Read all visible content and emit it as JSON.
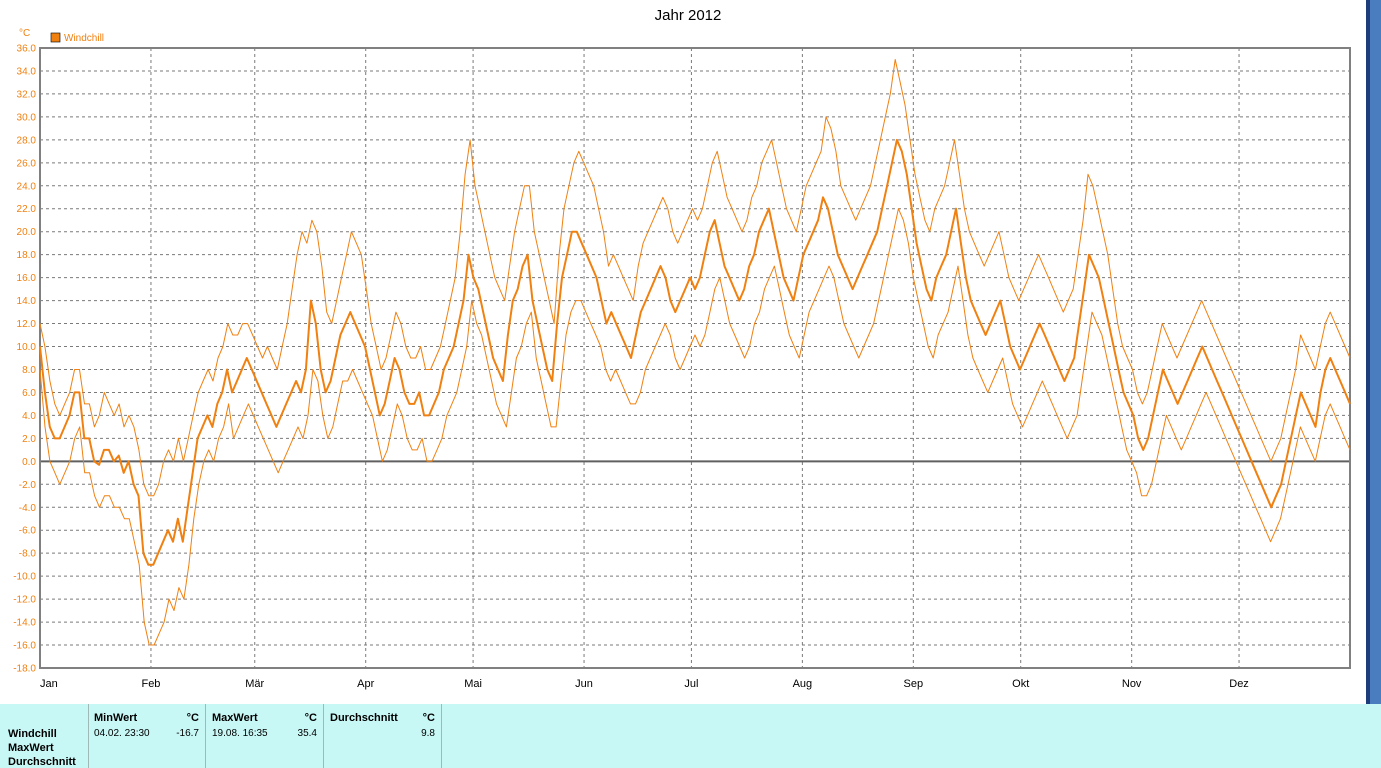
{
  "chart_data": {
    "type": "line",
    "title": "Jahr 2012",
    "unit": "°C",
    "legend": [
      {
        "name": "Windchill",
        "color": "#f08010"
      }
    ],
    "legend_position": "top-left",
    "ylim": [
      -18,
      36
    ],
    "yticks": [
      "36.0",
      "34.0",
      "32.0",
      "30.0",
      "28.0",
      "26.0",
      "24.0",
      "22.0",
      "20.0",
      "18.0",
      "16.0",
      "14.0",
      "12.0",
      "10.0",
      "8.0",
      "6.0",
      "4.0",
      "2.0",
      "0.0",
      "-2.0",
      "-4.0",
      "-6.0",
      "-8.0",
      "-10.0",
      "-12.0",
      "-14.0",
      "-16.0",
      "-18.0"
    ],
    "xticks": [
      "Jan",
      "Feb",
      "Mär",
      "Apr",
      "Mai",
      "Jun",
      "Jul",
      "Aug",
      "Sep",
      "Okt",
      "Nov",
      "Dez"
    ],
    "grid": true,
    "series": [
      {
        "name": "Windchill",
        "role": "avg",
        "width": 2,
        "values": [
          10,
          6,
          3,
          2,
          2,
          3,
          4,
          6,
          6,
          2,
          2,
          0,
          -0.3,
          1,
          1,
          0,
          0.5,
          -1,
          0,
          -2,
          -3,
          -8,
          -9,
          -9,
          -8,
          -7,
          -6,
          -7,
          -5,
          -7,
          -4,
          -1,
          2,
          3,
          4,
          3,
          5,
          6,
          8,
          6,
          7,
          8,
          9,
          8,
          7,
          6,
          5,
          4,
          3,
          4,
          5,
          6,
          7,
          6,
          8,
          14,
          12,
          8,
          6,
          7,
          9,
          11,
          12,
          13,
          12,
          11,
          10,
          8,
          6,
          4,
          5,
          7,
          9,
          8,
          6,
          5,
          5,
          6,
          4,
          4,
          5,
          6,
          8,
          9,
          10,
          12,
          14,
          18,
          16,
          15,
          13,
          11,
          9,
          8,
          7,
          11,
          14,
          15,
          17,
          18,
          14,
          12,
          10,
          8,
          7,
          12,
          16,
          18,
          20,
          20,
          19,
          18,
          17,
          16,
          14,
          12,
          13,
          12,
          11,
          10,
          9,
          11,
          13,
          14,
          15,
          16,
          17,
          16,
          14,
          13,
          14,
          15,
          16,
          15,
          16,
          18,
          20,
          21,
          19,
          17,
          16,
          15,
          14,
          15,
          17,
          18,
          20,
          21,
          22,
          20,
          18,
          16,
          15,
          14,
          16,
          18,
          19,
          20,
          21,
          23,
          22,
          20,
          18,
          17,
          16,
          15,
          16,
          17,
          18,
          19,
          20,
          22,
          24,
          26,
          28,
          27,
          25,
          22,
          19,
          17,
          15,
          14,
          16,
          17,
          18,
          20,
          22,
          19,
          16,
          14,
          13,
          12,
          11,
          12,
          13,
          14,
          12,
          10,
          9,
          8,
          9,
          10,
          11,
          12,
          11,
          10,
          9,
          8,
          7,
          8,
          9,
          12,
          15,
          18,
          17,
          16,
          14,
          12,
          10,
          8,
          6,
          5,
          4,
          2,
          1,
          2,
          4,
          6,
          8,
          7,
          6,
          5,
          6,
          7,
          8,
          9,
          10,
          9,
          8,
          7,
          6,
          5,
          4,
          3,
          2,
          1,
          0,
          -1,
          -2,
          -3,
          -4,
          -3,
          -2,
          0,
          2,
          4,
          6,
          5,
          4,
          3,
          6,
          8,
          9,
          8,
          7,
          6,
          5
        ]
      },
      {
        "name": "MaxWert",
        "role": "max",
        "width": 1,
        "values": [
          12,
          10,
          7,
          5,
          4,
          5,
          6,
          8,
          8,
          5,
          5,
          3,
          4,
          6,
          5,
          4,
          5,
          3,
          4,
          3,
          1,
          -2,
          -3,
          -3,
          -2,
          0,
          1,
          0,
          2,
          0,
          2,
          4,
          6,
          7,
          8,
          7,
          9,
          10,
          12,
          11,
          11,
          12,
          12,
          11,
          10,
          9,
          10,
          9,
          8,
          10,
          12,
          15,
          18,
          20,
          19,
          21,
          20,
          17,
          13,
          12,
          14,
          16,
          18,
          20,
          19,
          18,
          15,
          12,
          10,
          8,
          9,
          11,
          13,
          12,
          10,
          9,
          9,
          10,
          8,
          8,
          9,
          10,
          12,
          14,
          16,
          20,
          25,
          28,
          24,
          22,
          20,
          18,
          16,
          15,
          14,
          17,
          20,
          22,
          24,
          24,
          20,
          18,
          16,
          14,
          12,
          18,
          22,
          24,
          26,
          27,
          26,
          25,
          24,
          22,
          20,
          17,
          18,
          17,
          16,
          15,
          14,
          17,
          19,
          20,
          21,
          22,
          23,
          22,
          20,
          19,
          20,
          21,
          22,
          21,
          22,
          24,
          26,
          27,
          25,
          23,
          22,
          21,
          20,
          21,
          23,
          24,
          26,
          27,
          28,
          26,
          24,
          22,
          21,
          20,
          22,
          24,
          25,
          26,
          27,
          30,
          29,
          27,
          24,
          23,
          22,
          21,
          22,
          23,
          24,
          26,
          28,
          30,
          32,
          35,
          33,
          31,
          28,
          25,
          23,
          21,
          20,
          22,
          23,
          24,
          26,
          28,
          25,
          22,
          20,
          19,
          18,
          17,
          18,
          19,
          20,
          18,
          16,
          15,
          14,
          15,
          16,
          17,
          18,
          17,
          16,
          15,
          14,
          13,
          14,
          15,
          18,
          21,
          25,
          24,
          22,
          20,
          18,
          15,
          12,
          10,
          9,
          8,
          6,
          5,
          6,
          8,
          10,
          12,
          11,
          10,
          9,
          10,
          11,
          12,
          13,
          14,
          13,
          12,
          11,
          10,
          9,
          8,
          7,
          6,
          5,
          4,
          3,
          2,
          1,
          0,
          1,
          2,
          4,
          6,
          8,
          11,
          10,
          9,
          8,
          10,
          12,
          13,
          12,
          11,
          10,
          9
        ]
      },
      {
        "name": "MinWert",
        "role": "min",
        "width": 1,
        "values": [
          8,
          3,
          0,
          -1,
          -2,
          -1,
          0,
          2,
          3,
          -1,
          -1,
          -3,
          -4,
          -3,
          -3,
          -4,
          -4,
          -5,
          -5,
          -7,
          -9,
          -14,
          -16,
          -16,
          -15,
          -14,
          -12,
          -13,
          -11,
          -12,
          -9,
          -5,
          -2,
          0,
          1,
          0,
          2,
          3,
          5,
          2,
          3,
          4,
          5,
          4,
          3,
          2,
          1,
          0,
          -1,
          0,
          1,
          2,
          3,
          2,
          4,
          8,
          7,
          4,
          2,
          3,
          5,
          7,
          7,
          8,
          7,
          6,
          5,
          4,
          2,
          0,
          1,
          3,
          5,
          4,
          2,
          1,
          1,
          2,
          0,
          0,
          1,
          2,
          4,
          5,
          6,
          8,
          10,
          14,
          12,
          11,
          9,
          7,
          5,
          4,
          3,
          6,
          9,
          10,
          12,
          13,
          9,
          7,
          5,
          3,
          3,
          7,
          11,
          13,
          14,
          14,
          13,
          12,
          11,
          10,
          8,
          7,
          8,
          7,
          6,
          5,
          5,
          6,
          8,
          9,
          10,
          11,
          12,
          11,
          9,
          8,
          9,
          10,
          11,
          10,
          11,
          13,
          15,
          16,
          14,
          12,
          11,
          10,
          9,
          10,
          12,
          13,
          15,
          16,
          17,
          15,
          13,
          11,
          10,
          9,
          11,
          13,
          14,
          15,
          16,
          17,
          16,
          14,
          12,
          11,
          10,
          9,
          10,
          11,
          12,
          14,
          16,
          18,
          20,
          22,
          21,
          19,
          16,
          14,
          12,
          10,
          9,
          11,
          12,
          13,
          15,
          17,
          14,
          11,
          9,
          8,
          7,
          6,
          7,
          8,
          9,
          7,
          5,
          4,
          3,
          4,
          5,
          6,
          7,
          6,
          5,
          4,
          3,
          2,
          3,
          4,
          7,
          10,
          13,
          12,
          11,
          9,
          7,
          5,
          3,
          1,
          0,
          -1,
          -3,
          -3,
          -2,
          0,
          2,
          4,
          3,
          2,
          1,
          2,
          3,
          4,
          5,
          6,
          5,
          4,
          3,
          2,
          1,
          0,
          -1,
          -2,
          -3,
          -4,
          -5,
          -6,
          -7,
          -6,
          -5,
          -3,
          -1,
          1,
          3,
          2,
          1,
          0,
          2,
          4,
          5,
          4,
          3,
          2,
          1
        ]
      }
    ]
  },
  "table": {
    "row_labels": [
      "Windchill",
      "MaxWert",
      "Durchschnitt"
    ],
    "min": {
      "header": "MinWert",
      "unit": "°C",
      "date": "04.02.  23:30",
      "value": "-16.7"
    },
    "max": {
      "header": "MaxWert",
      "unit": "°C",
      "date": "19.08.  16:35",
      "value": "35.4"
    },
    "avg": {
      "header": "Durchschnitt",
      "unit": "°C",
      "value": "9.8"
    }
  }
}
